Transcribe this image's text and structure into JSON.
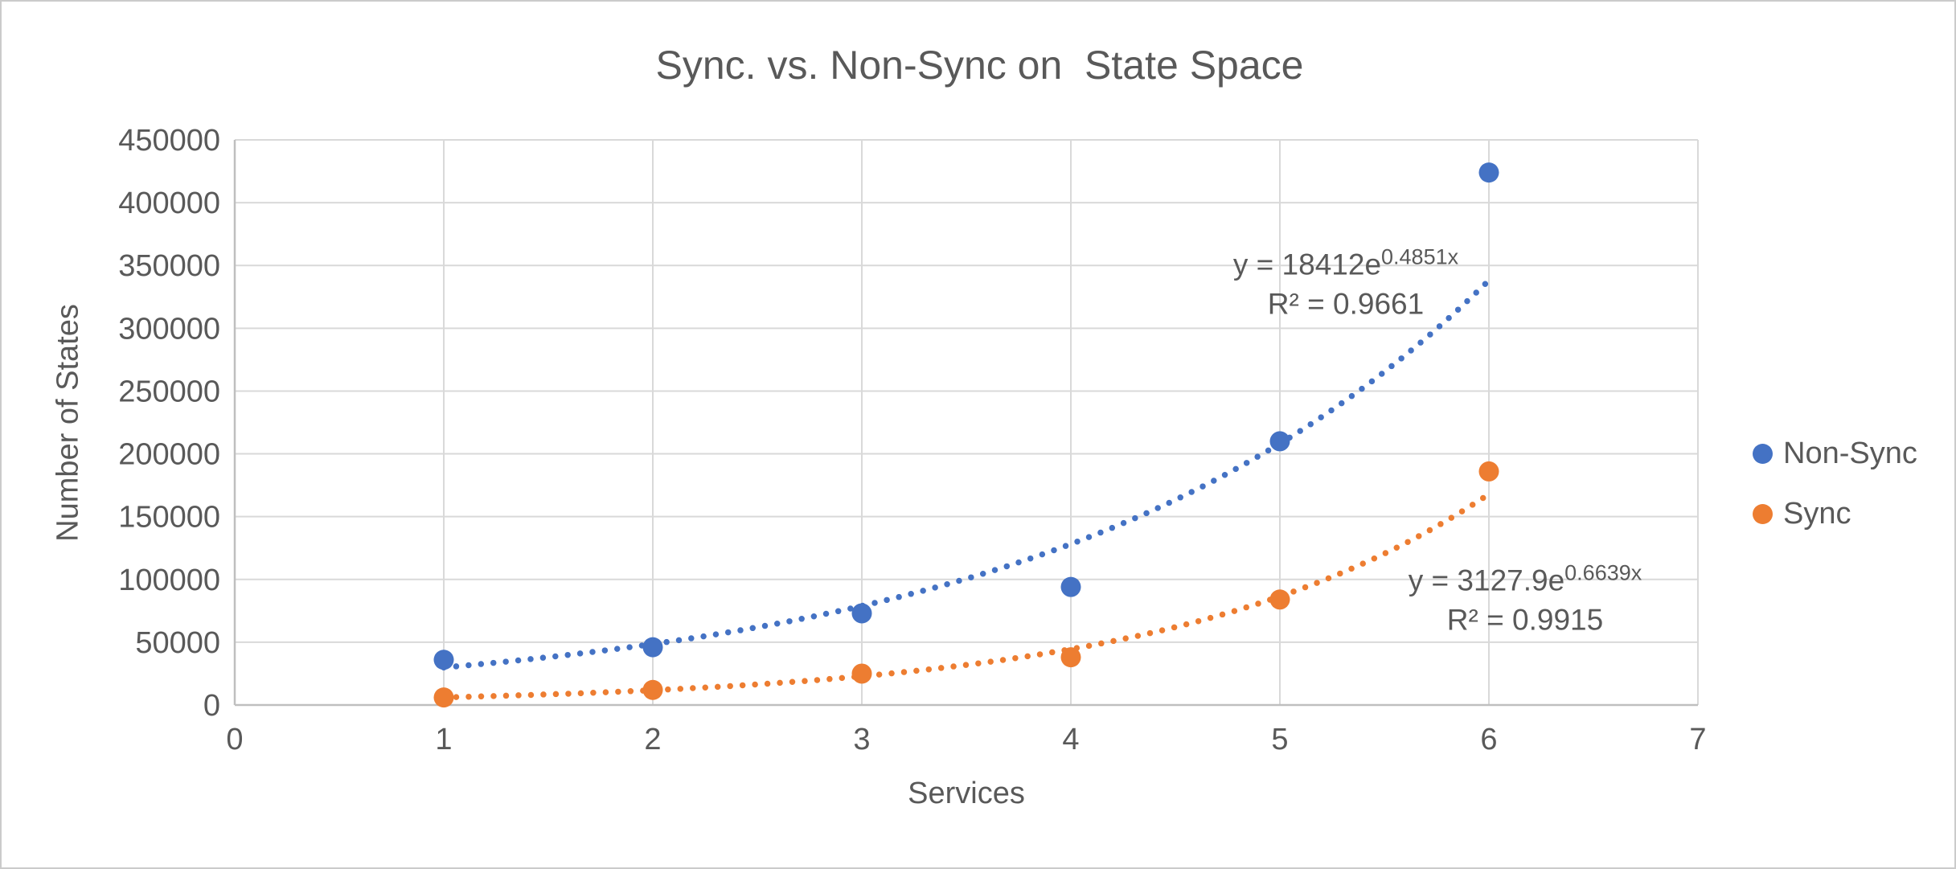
{
  "chart": {
    "title": "Sync. vs. Non-Sync on  State Space",
    "x_axis": {
      "title": "Services",
      "min": 0,
      "max": 7,
      "tick_labels": [
        "0",
        "1",
        "2",
        "3",
        "4",
        "5",
        "6",
        "7"
      ]
    },
    "y_axis": {
      "title": "Number of States",
      "min": 0,
      "max": 450000,
      "tick_labels": [
        "0",
        "50000",
        "100000",
        "150000",
        "200000",
        "250000",
        "300000",
        "350000",
        "400000",
        "450000"
      ]
    },
    "colors": {
      "non_sync": "#4472C4",
      "sync": "#ED7D31",
      "gridline": "#D9D9D9",
      "axis_line": "#BFBFBF",
      "text": "#595959"
    }
  },
  "chart_data": {
    "type": "scatter",
    "title": "Sync. vs. Non-Sync on  State Space",
    "xlabel": "Services",
    "ylabel": "Number of States",
    "xlim": [
      0,
      7
    ],
    "ylim": [
      0,
      450000
    ],
    "grid": true,
    "legend_position": "right",
    "x": [
      1,
      2,
      3,
      4,
      5,
      6
    ],
    "series": [
      {
        "name": "Non-Sync",
        "color": "#4472C4",
        "values": [
          36000,
          46000,
          73000,
          94000,
          210000,
          424000
        ],
        "trendline": {
          "type": "exponential",
          "a": 18412,
          "b": 0.4851,
          "x_range": [
            1,
            6
          ],
          "equation_prefix": "y = 18412e",
          "equation_exponent": "0.4851x",
          "r2_label": "R² = 0.9661"
        }
      },
      {
        "name": "Sync",
        "color": "#ED7D31",
        "values": [
          6000,
          12000,
          25000,
          38000,
          84000,
          186000
        ],
        "trendline": {
          "type": "exponential",
          "a": 3127.9,
          "b": 0.6639,
          "x_range": [
            1,
            6
          ],
          "equation_prefix": "y = 3127.9e",
          "equation_exponent": "0.6639x",
          "r2_label": "R² = 0.9915"
        }
      }
    ]
  }
}
